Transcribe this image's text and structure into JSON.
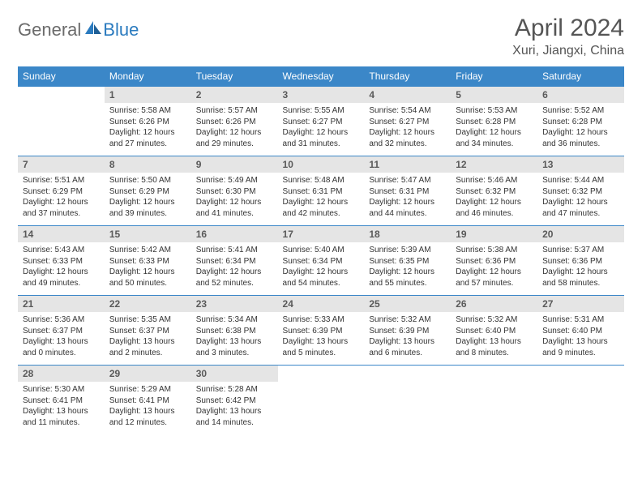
{
  "logo": {
    "general": "General",
    "blue": "Blue"
  },
  "title": "April 2024",
  "location": "Xuri, Jiangxi, China",
  "colors": {
    "header_bg": "#3b87c8",
    "header_text": "#ffffff",
    "daynum_bg": "#e5e5e5",
    "daynum_text": "#5a5a5a",
    "body_text": "#333333",
    "border": "#3b87c8",
    "logo_gray": "#6b6b6b",
    "logo_blue": "#2b7bbf"
  },
  "weekdays": [
    "Sunday",
    "Monday",
    "Tuesday",
    "Wednesday",
    "Thursday",
    "Friday",
    "Saturday"
  ],
  "first_weekday_index": 1,
  "days": [
    {
      "n": 1,
      "sunrise": "5:58 AM",
      "sunset": "6:26 PM",
      "daylight": "12 hours and 27 minutes."
    },
    {
      "n": 2,
      "sunrise": "5:57 AM",
      "sunset": "6:26 PM",
      "daylight": "12 hours and 29 minutes."
    },
    {
      "n": 3,
      "sunrise": "5:55 AM",
      "sunset": "6:27 PM",
      "daylight": "12 hours and 31 minutes."
    },
    {
      "n": 4,
      "sunrise": "5:54 AM",
      "sunset": "6:27 PM",
      "daylight": "12 hours and 32 minutes."
    },
    {
      "n": 5,
      "sunrise": "5:53 AM",
      "sunset": "6:28 PM",
      "daylight": "12 hours and 34 minutes."
    },
    {
      "n": 6,
      "sunrise": "5:52 AM",
      "sunset": "6:28 PM",
      "daylight": "12 hours and 36 minutes."
    },
    {
      "n": 7,
      "sunrise": "5:51 AM",
      "sunset": "6:29 PM",
      "daylight": "12 hours and 37 minutes."
    },
    {
      "n": 8,
      "sunrise": "5:50 AM",
      "sunset": "6:29 PM",
      "daylight": "12 hours and 39 minutes."
    },
    {
      "n": 9,
      "sunrise": "5:49 AM",
      "sunset": "6:30 PM",
      "daylight": "12 hours and 41 minutes."
    },
    {
      "n": 10,
      "sunrise": "5:48 AM",
      "sunset": "6:31 PM",
      "daylight": "12 hours and 42 minutes."
    },
    {
      "n": 11,
      "sunrise": "5:47 AM",
      "sunset": "6:31 PM",
      "daylight": "12 hours and 44 minutes."
    },
    {
      "n": 12,
      "sunrise": "5:46 AM",
      "sunset": "6:32 PM",
      "daylight": "12 hours and 46 minutes."
    },
    {
      "n": 13,
      "sunrise": "5:44 AM",
      "sunset": "6:32 PM",
      "daylight": "12 hours and 47 minutes."
    },
    {
      "n": 14,
      "sunrise": "5:43 AM",
      "sunset": "6:33 PM",
      "daylight": "12 hours and 49 minutes."
    },
    {
      "n": 15,
      "sunrise": "5:42 AM",
      "sunset": "6:33 PM",
      "daylight": "12 hours and 50 minutes."
    },
    {
      "n": 16,
      "sunrise": "5:41 AM",
      "sunset": "6:34 PM",
      "daylight": "12 hours and 52 minutes."
    },
    {
      "n": 17,
      "sunrise": "5:40 AM",
      "sunset": "6:34 PM",
      "daylight": "12 hours and 54 minutes."
    },
    {
      "n": 18,
      "sunrise": "5:39 AM",
      "sunset": "6:35 PM",
      "daylight": "12 hours and 55 minutes."
    },
    {
      "n": 19,
      "sunrise": "5:38 AM",
      "sunset": "6:36 PM",
      "daylight": "12 hours and 57 minutes."
    },
    {
      "n": 20,
      "sunrise": "5:37 AM",
      "sunset": "6:36 PM",
      "daylight": "12 hours and 58 minutes."
    },
    {
      "n": 21,
      "sunrise": "5:36 AM",
      "sunset": "6:37 PM",
      "daylight": "13 hours and 0 minutes."
    },
    {
      "n": 22,
      "sunrise": "5:35 AM",
      "sunset": "6:37 PM",
      "daylight": "13 hours and 2 minutes."
    },
    {
      "n": 23,
      "sunrise": "5:34 AM",
      "sunset": "6:38 PM",
      "daylight": "13 hours and 3 minutes."
    },
    {
      "n": 24,
      "sunrise": "5:33 AM",
      "sunset": "6:39 PM",
      "daylight": "13 hours and 5 minutes."
    },
    {
      "n": 25,
      "sunrise": "5:32 AM",
      "sunset": "6:39 PM",
      "daylight": "13 hours and 6 minutes."
    },
    {
      "n": 26,
      "sunrise": "5:32 AM",
      "sunset": "6:40 PM",
      "daylight": "13 hours and 8 minutes."
    },
    {
      "n": 27,
      "sunrise": "5:31 AM",
      "sunset": "6:40 PM",
      "daylight": "13 hours and 9 minutes."
    },
    {
      "n": 28,
      "sunrise": "5:30 AM",
      "sunset": "6:41 PM",
      "daylight": "13 hours and 11 minutes."
    },
    {
      "n": 29,
      "sunrise": "5:29 AM",
      "sunset": "6:41 PM",
      "daylight": "13 hours and 12 minutes."
    },
    {
      "n": 30,
      "sunrise": "5:28 AM",
      "sunset": "6:42 PM",
      "daylight": "13 hours and 14 minutes."
    }
  ],
  "labels": {
    "sunrise": "Sunrise:",
    "sunset": "Sunset:",
    "daylight": "Daylight:"
  }
}
